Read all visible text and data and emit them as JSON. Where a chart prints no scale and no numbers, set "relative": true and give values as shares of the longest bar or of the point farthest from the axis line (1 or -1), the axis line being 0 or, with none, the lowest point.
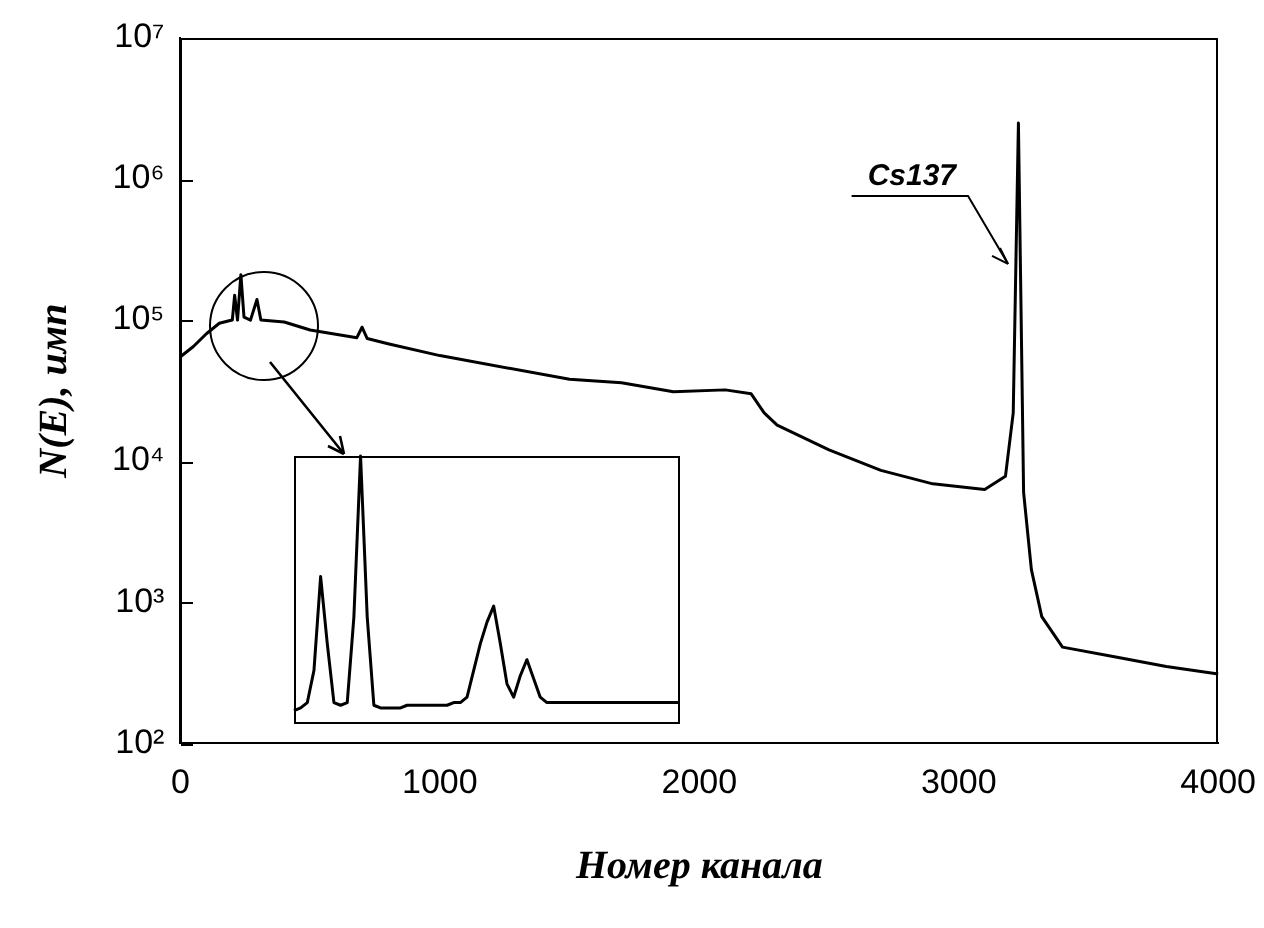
{
  "chart_data": [
    {
      "type": "line",
      "xlabel": "Номер канала",
      "ylabel": "N(E), имп",
      "color": "#000000",
      "log": "y",
      "grid": false,
      "legend": false,
      "xlim": [
        0,
        4000
      ],
      "xticks": [
        0,
        1000,
        2000,
        3000,
        4000
      ],
      "ylim": [
        100,
        10000000
      ],
      "yticks": [
        {
          "value": 100,
          "label": "10²"
        },
        {
          "value": 1000,
          "label": "10³"
        },
        {
          "value": 10000,
          "label": "10⁴"
        },
        {
          "value": 100000,
          "label": "10⁵"
        },
        {
          "value": 1000000,
          "label": "10⁶"
        },
        {
          "value": 10000000,
          "label": "10⁷"
        }
      ],
      "x": [
        0,
        50,
        100,
        150,
        180,
        200,
        209,
        220,
        233,
        245,
        270,
        295,
        310,
        400,
        500,
        680,
        700,
        720,
        800,
        1000,
        1500,
        1700,
        1900,
        2100,
        2200,
        2250,
        2300,
        2500,
        2700,
        2900,
        3100,
        3180,
        3210,
        3230,
        3250,
        3280,
        3320,
        3400,
        3600,
        3800,
        4000
      ],
      "values": [
        55000,
        65000,
        80000,
        95000,
        98000,
        100000,
        150000,
        100000,
        210000,
        105000,
        100000,
        140000,
        100000,
        97000,
        85000,
        75000,
        89000,
        74000,
        68000,
        56000,
        38000,
        36000,
        31000,
        32000,
        30000,
        22000,
        18000,
        12000,
        8600,
        6900,
        6300,
        7800,
        22000,
        2500000,
        6000,
        1700,
        790,
        480,
        410,
        350,
        310
      ],
      "annotations": [
        {
          "text": "Cs137",
          "x": 3190,
          "y": 250000
        }
      ]
    },
    {
      "type": "line",
      "color": "#000000",
      "relative": true,
      "categories": [
        null,
        null,
        null,
        null,
        null,
        null,
        null,
        null,
        null,
        null,
        null,
        null,
        null,
        null,
        null,
        null,
        null,
        null,
        null,
        null,
        null,
        null,
        null,
        null,
        null,
        null,
        null,
        null,
        null,
        null,
        null,
        null,
        null,
        null,
        null,
        null,
        null,
        null,
        null,
        null,
        null,
        null,
        null,
        null,
        null,
        null,
        null,
        null,
        null,
        null,
        null,
        null,
        null,
        null,
        null,
        null,
        null,
        null,
        null
      ],
      "values": [
        0.05,
        0.06,
        0.08,
        0.2,
        0.55,
        0.3,
        0.08,
        0.07,
        0.08,
        0.4,
        1,
        0.4,
        0.07,
        0.06,
        0.06,
        0.06,
        0.06,
        0.07,
        0.07,
        0.07,
        0.07,
        0.07,
        0.07,
        0.07,
        0.08,
        0.08,
        0.1,
        0.2,
        0.3,
        0.38,
        0.44,
        0.3,
        0.15,
        0.1,
        0.18,
        0.24,
        0.17,
        0.1,
        0.08,
        0.08,
        0.08,
        0.08,
        0.08,
        0.08,
        0.08,
        0.08,
        0.08,
        0.08,
        0.08,
        0.08,
        0.08,
        0.08,
        0.08,
        0.08,
        0.08,
        0.08,
        0.08,
        0.08,
        0.08
      ]
    }
  ]
}
